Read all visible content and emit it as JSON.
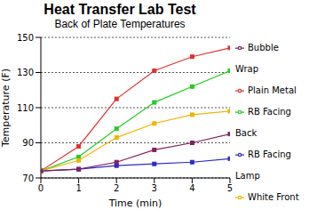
{
  "chart_data": {
    "type": "line",
    "title": "Heat Transfer Lab Test",
    "subtitle": "Back of Plate Temperatures",
    "x_label": "Time (min)",
    "y_label": "Temperature (F)",
    "x": [
      0,
      1,
      2,
      3,
      4,
      5
    ],
    "xlim": [
      0,
      5
    ],
    "xticks": [
      0,
      1,
      2,
      3,
      4,
      5
    ],
    "ylim": [
      70,
      150
    ],
    "yticks": [
      70,
      90,
      110,
      130,
      150
    ],
    "grid": true,
    "legend": "right",
    "marker": "square",
    "series": [
      {
        "name": "Plain Metal",
        "color": "#e03030",
        "values": [
          74,
          88,
          115,
          131,
          139,
          144
        ]
      },
      {
        "name": "RB  Facing Back",
        "color": "#22cc22",
        "values": [
          74,
          82,
          98,
          113,
          122,
          131
        ]
      },
      {
        "name": "RB Facing Lamp",
        "color": "#2a2ac8",
        "values": [
          74,
          75,
          77,
          78,
          79,
          81
        ]
      },
      {
        "name": "White Front",
        "color": "#f0b400",
        "values": [
          74,
          80,
          93,
          101,
          106,
          108
        ]
      },
      {
        "name": "Bubble Wrap",
        "color": "#802060",
        "values": [
          74,
          75,
          79,
          86,
          90,
          95
        ]
      }
    ]
  }
}
